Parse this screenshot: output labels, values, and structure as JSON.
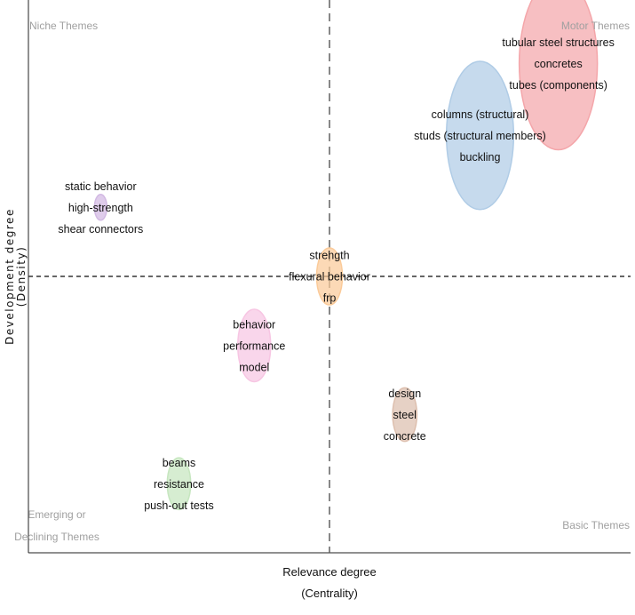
{
  "chart_data": {
    "type": "scatter",
    "subtype": "thematic-map-bubbles",
    "xlabel": "Relevance degree",
    "xlabel_sub": "(Centrality)",
    "ylabel": "Development degree",
    "ylabel_sub": "(Density)",
    "xlim": [
      0,
      1
    ],
    "ylim": [
      0,
      1
    ],
    "x_split": 0.5,
    "y_split": 0.5,
    "quadrants": {
      "top_left": [
        "Niche Themes"
      ],
      "top_right": [
        "Motor Themes"
      ],
      "bottom_left": [
        "Emerging or",
        "Declining Themes"
      ],
      "bottom_right": [
        "Basic Themes"
      ]
    },
    "clusters": [
      {
        "terms": [
          "tubular steel structures",
          "concretes",
          "tubes (components)"
        ],
        "x": 0.88,
        "y": 0.885,
        "size": 1.0,
        "color": "#f4a6aa"
      },
      {
        "terms": [
          "columns (structural)",
          "studs (structural members)",
          "buckling"
        ],
        "x": 0.75,
        "y": 0.755,
        "size": 0.86,
        "color": "#b0cce6"
      },
      {
        "terms": [
          "static behavior",
          "high-strength",
          "shear connectors"
        ],
        "x": 0.12,
        "y": 0.625,
        "size": 0.15,
        "color": "#d2b9e3"
      },
      {
        "terms": [
          "strehgth",
          "flexural behavior",
          "frp"
        ],
        "x": 0.5,
        "y": 0.5,
        "size": 0.33,
        "color": "#fbcb9a"
      },
      {
        "terms": [
          "behavior",
          "performance",
          "model"
        ],
        "x": 0.375,
        "y": 0.375,
        "size": 0.42,
        "color": "#f7c6e3"
      },
      {
        "terms": [
          "design",
          "steel",
          "concrete"
        ],
        "x": 0.625,
        "y": 0.25,
        "size": 0.31,
        "color": "#ddbfae"
      },
      {
        "terms": [
          "beams",
          "resistance",
          "push-out tests"
        ],
        "x": 0.25,
        "y": 0.125,
        "size": 0.3,
        "color": "#c6e6bf"
      }
    ]
  }
}
